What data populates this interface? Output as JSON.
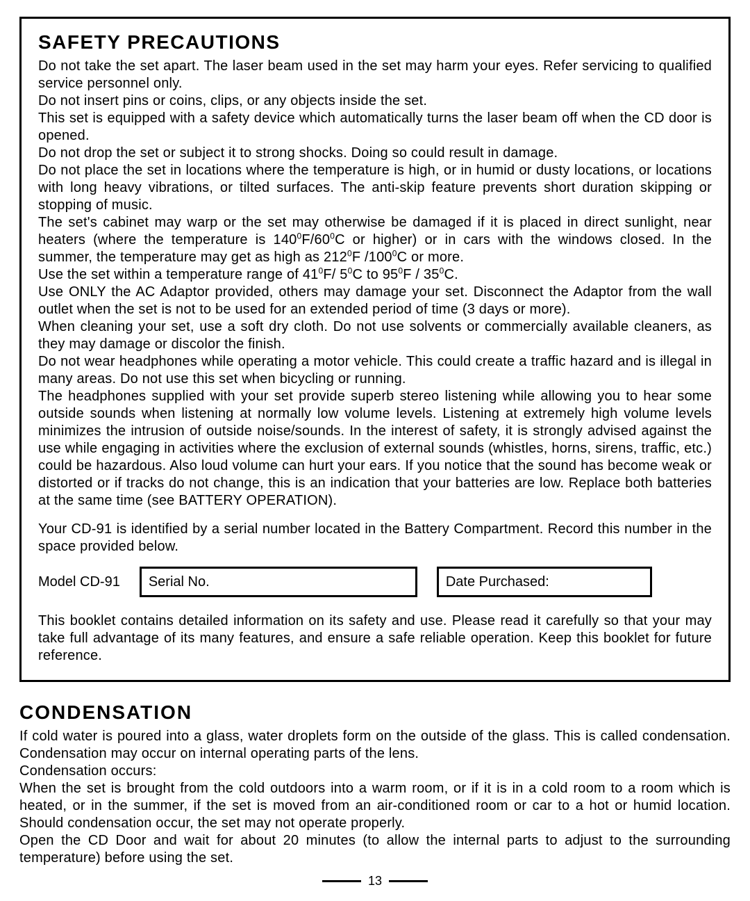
{
  "safety": {
    "heading": "SAFETY PRECAUTIONS",
    "p1": "Do not take the set apart. The laser beam used in the set may harm your eyes. Refer servicing to qualified service personnel only.",
    "p2": "Do not insert pins or coins, clips, or any objects inside the set.",
    "p3": "This set is equipped with a safety device which automatically turns the laser beam off when the CD door is opened.",
    "p4": "Do not drop the set or subject it to strong shocks. Doing so could result in damage.",
    "p5": "Do not place the set in locations where the temperature is high, or in humid or dusty locations, or locations with long heavy vibrations, or tilted surfaces. The anti-skip feature prevents short duration skipping or stopping of music.",
    "p8": "Use ONLY the AC Adaptor provided, others may damage your set. Disconnect the Adaptor from the wall outlet when the set is not to be used for an extended period of time (3 days or more).",
    "p9": "When cleaning your set, use a soft dry cloth. Do not use solvents or commercially available cleaners, as they may damage or discolor the finish.",
    "p10": "Do not wear headphones while operating a motor vehicle. This could create a traffic hazard and is illegal in many areas. Do not use this set when bicycling or running.",
    "p11": "The headphones supplied with your set provide superb stereo listening while allowing you to hear some outside sounds when listening at normally low volume levels. Listening at extremely high volume levels minimizes the intrusion of outside noise/sounds. In the interest of safety, it is strongly advised against the use while engaging in activities where the exclusion of external sounds (whistles, horns, sirens, traffic, etc.) could be hazardous. Also loud volume can hurt your ears. If you notice that the sound has become weak or distorted or if tracks do not change, this is an indication that your batteries are low. Replace both batteries at the same time (see BATTERY OPERATION).",
    "serialInfo": "Your CD-91 is identified by a serial number located in the Battery Compartment. Record this number in the space provided below.",
    "modelLabel": "Model CD-91",
    "serialLabel": "Serial No.",
    "dateLabel": "Date Purchased:",
    "booklet": "This booklet contains detailed information on its safety and use. Please read it carefully so that your may take full advantage of its many features, and ensure a safe reliable operation. Keep this booklet for future reference."
  },
  "temps": {
    "p6_a": "The set's cabinet may warp or the set may otherwise be damaged if it is placed in direct sunlight, near heaters (where the temperature is 140",
    "p6_b": "F/60",
    "p6_c": "C or higher) or in cars with the windows closed. In the summer, the temperature may get as high as 212",
    "p6_d": "F /100",
    "p6_e": "C or more.",
    "p7_a": "Use the set within a temperature range of 41",
    "p7_b": "F/ 5",
    "p7_c": "C to 95",
    "p7_d": "F / 35",
    "p7_e": "C.",
    "deg": "0"
  },
  "condensation": {
    "heading": "CONDENSATION",
    "p1": "If cold water is poured into a glass, water droplets form on the outside of the glass. This is called condensation. Condensation may occur on internal operating parts of the lens.",
    "p2": "Condensation occurs:",
    "p3": "When the set is brought from the cold outdoors into a warm room, or if it is in a cold room to a room which is heated, or in the summer, if the set is moved from an air-conditioned room or car to a hot or humid location. Should condensation occur, the set may not operate properly.",
    "p4": "Open the CD Door and wait for about 20 minutes (to allow the internal parts to adjust to the surrounding temperature) before using the set."
  },
  "pageNumber": "13"
}
